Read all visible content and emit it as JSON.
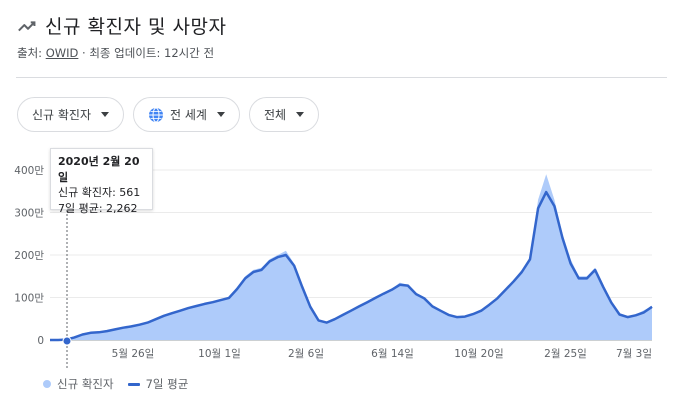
{
  "header": {
    "title": "신규 확진자 및 사망자",
    "icon": "trending-up-icon"
  },
  "source": {
    "prefix": "출처:",
    "link": "OWID",
    "separator": "·",
    "updated": "최종 업데이트: 12시간 전"
  },
  "filters": {
    "metric": "신규 확진자",
    "region": "전 세계",
    "range": "전체"
  },
  "tooltip": {
    "date": "2020년 2월 20일",
    "cases": "신규 확진자: 561",
    "average": "7일 평균: 2,262"
  },
  "legend": {
    "bars": "신규 확진자",
    "line": "7일 평균"
  },
  "colors": {
    "bars": "#aecbfa",
    "line": "#3366cc",
    "grid": "#ebebeb",
    "text": "#5f6368"
  },
  "chart_data": {
    "type": "area",
    "ylim": [
      0,
      4000000
    ],
    "y_ticks": [
      {
        "value": 0,
        "label": "0"
      },
      {
        "value": 1000000,
        "label": "100만"
      },
      {
        "value": 2000000,
        "label": "200만"
      },
      {
        "value": 3000000,
        "label": "300만"
      },
      {
        "value": 4000000,
        "label": "400만"
      }
    ],
    "x_ticks": [
      "5월 26일",
      "10월 1일",
      "2월 6일",
      "6월 14일",
      "10월 20일",
      "2월 25일",
      "7월 3일"
    ],
    "series": [
      {
        "name": "신규 확진자",
        "values": [
          0,
          0,
          10000,
          80000,
          150000,
          200000,
          180000,
          220000,
          260000,
          300000,
          330000,
          380000,
          420000,
          500000,
          580000,
          640000,
          700000,
          760000,
          820000,
          870000,
          900000,
          950000,
          1000000,
          1250000,
          1500000,
          1650000,
          1700000,
          1900000,
          2000000,
          2100000,
          1800000,
          1300000,
          800000,
          450000,
          400000,
          500000,
          600000,
          700000,
          800000,
          900000,
          1000000,
          1100000,
          1200000,
          1350000,
          1300000,
          1100000,
          1000000,
          800000,
          700000,
          600000,
          550000,
          560000,
          620000,
          700000,
          850000,
          1000000,
          1200000,
          1400000,
          1650000,
          1950000,
          3300000,
          3900000,
          3300000,
          2500000,
          1900000,
          1500000,
          1500000,
          1700000,
          1300000,
          900000,
          600000,
          550000,
          600000,
          700000,
          800000
        ]
      },
      {
        "name": "7일 평균",
        "values": [
          0,
          0,
          10000,
          60000,
          130000,
          170000,
          180000,
          210000,
          250000,
          290000,
          320000,
          360000,
          410000,
          490000,
          570000,
          630000,
          690000,
          750000,
          800000,
          850000,
          890000,
          940000,
          990000,
          1200000,
          1450000,
          1600000,
          1650000,
          1850000,
          1950000,
          2000000,
          1750000,
          1250000,
          780000,
          460000,
          410000,
          490000,
          590000,
          690000,
          790000,
          890000,
          990000,
          1090000,
          1180000,
          1300000,
          1280000,
          1080000,
          980000,
          790000,
          690000,
          590000,
          540000,
          550000,
          610000,
          690000,
          830000,
          980000,
          1180000,
          1380000,
          1600000,
          1900000,
          3100000,
          3480000,
          3150000,
          2400000,
          1800000,
          1450000,
          1450000,
          1650000,
          1250000,
          880000,
          600000,
          540000,
          580000,
          650000,
          780000
        ]
      }
    ]
  }
}
